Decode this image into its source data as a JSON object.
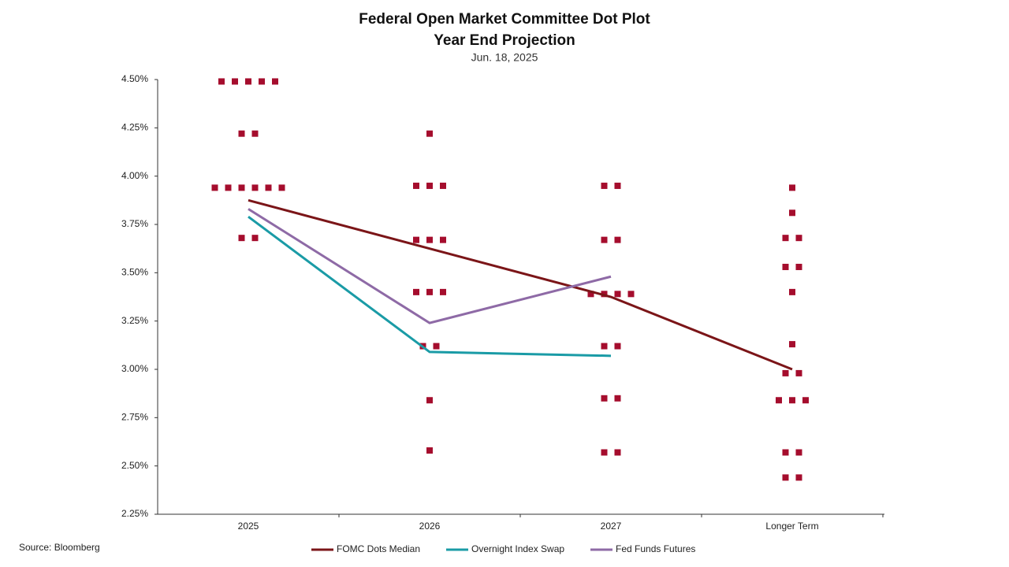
{
  "chart_data": {
    "type": "line",
    "title": "Federal Open Market Committee Dot Plot",
    "subtitle": "Year End Projection",
    "date": "Jun. 18, 2025",
    "source": "Source: Bloomberg",
    "categories": [
      "2025",
      "2026",
      "2027",
      "Longer Term"
    ],
    "ylim": [
      2.25,
      4.5
    ],
    "yticks": [
      {
        "value": 2.25,
        "label": "2.25%"
      },
      {
        "value": 2.5,
        "label": "2.50%"
      },
      {
        "value": 2.75,
        "label": "2.75%"
      },
      {
        "value": 3.0,
        "label": "3.00%"
      },
      {
        "value": 3.25,
        "label": "3.25%"
      },
      {
        "value": 3.5,
        "label": "3.50%"
      },
      {
        "value": 3.75,
        "label": "3.75%"
      },
      {
        "value": 4.0,
        "label": "4.00%"
      },
      {
        "value": 4.25,
        "label": "4.25%"
      },
      {
        "value": 4.5,
        "label": "4.50%"
      }
    ],
    "dots_color": "#a50d2d",
    "dots": [
      [
        4.49,
        4.49,
        4.49,
        4.49,
        4.49,
        4.22,
        4.22,
        3.94,
        3.94,
        3.94,
        3.94,
        3.94,
        3.94,
        3.68,
        3.68
      ],
      [
        4.22,
        3.95,
        3.95,
        3.95,
        3.67,
        3.67,
        3.67,
        3.4,
        3.4,
        3.4,
        3.12,
        3.12,
        2.84,
        2.58
      ],
      [
        3.95,
        3.95,
        3.67,
        3.67,
        3.39,
        3.39,
        3.39,
        3.39,
        3.12,
        3.12,
        2.85,
        2.85,
        2.57,
        2.57
      ],
      [
        3.94,
        3.81,
        3.68,
        3.68,
        3.53,
        3.53,
        3.4,
        3.13,
        2.98,
        2.98,
        2.84,
        2.84,
        2.84,
        2.57,
        2.57,
        2.44,
        2.44
      ]
    ],
    "series": [
      {
        "name": "FOMC Dots Median",
        "color": "#7b1518",
        "values": [
          3.875,
          3.625,
          3.375,
          3.0
        ]
      },
      {
        "name": "Overnight Index Swap",
        "color": "#1a9ba6",
        "values": [
          3.79,
          3.09,
          3.07,
          null
        ]
      },
      {
        "name": "Fed Funds Futures",
        "color": "#8e6aa6",
        "values": [
          3.83,
          3.24,
          3.48,
          null
        ]
      }
    ]
  }
}
